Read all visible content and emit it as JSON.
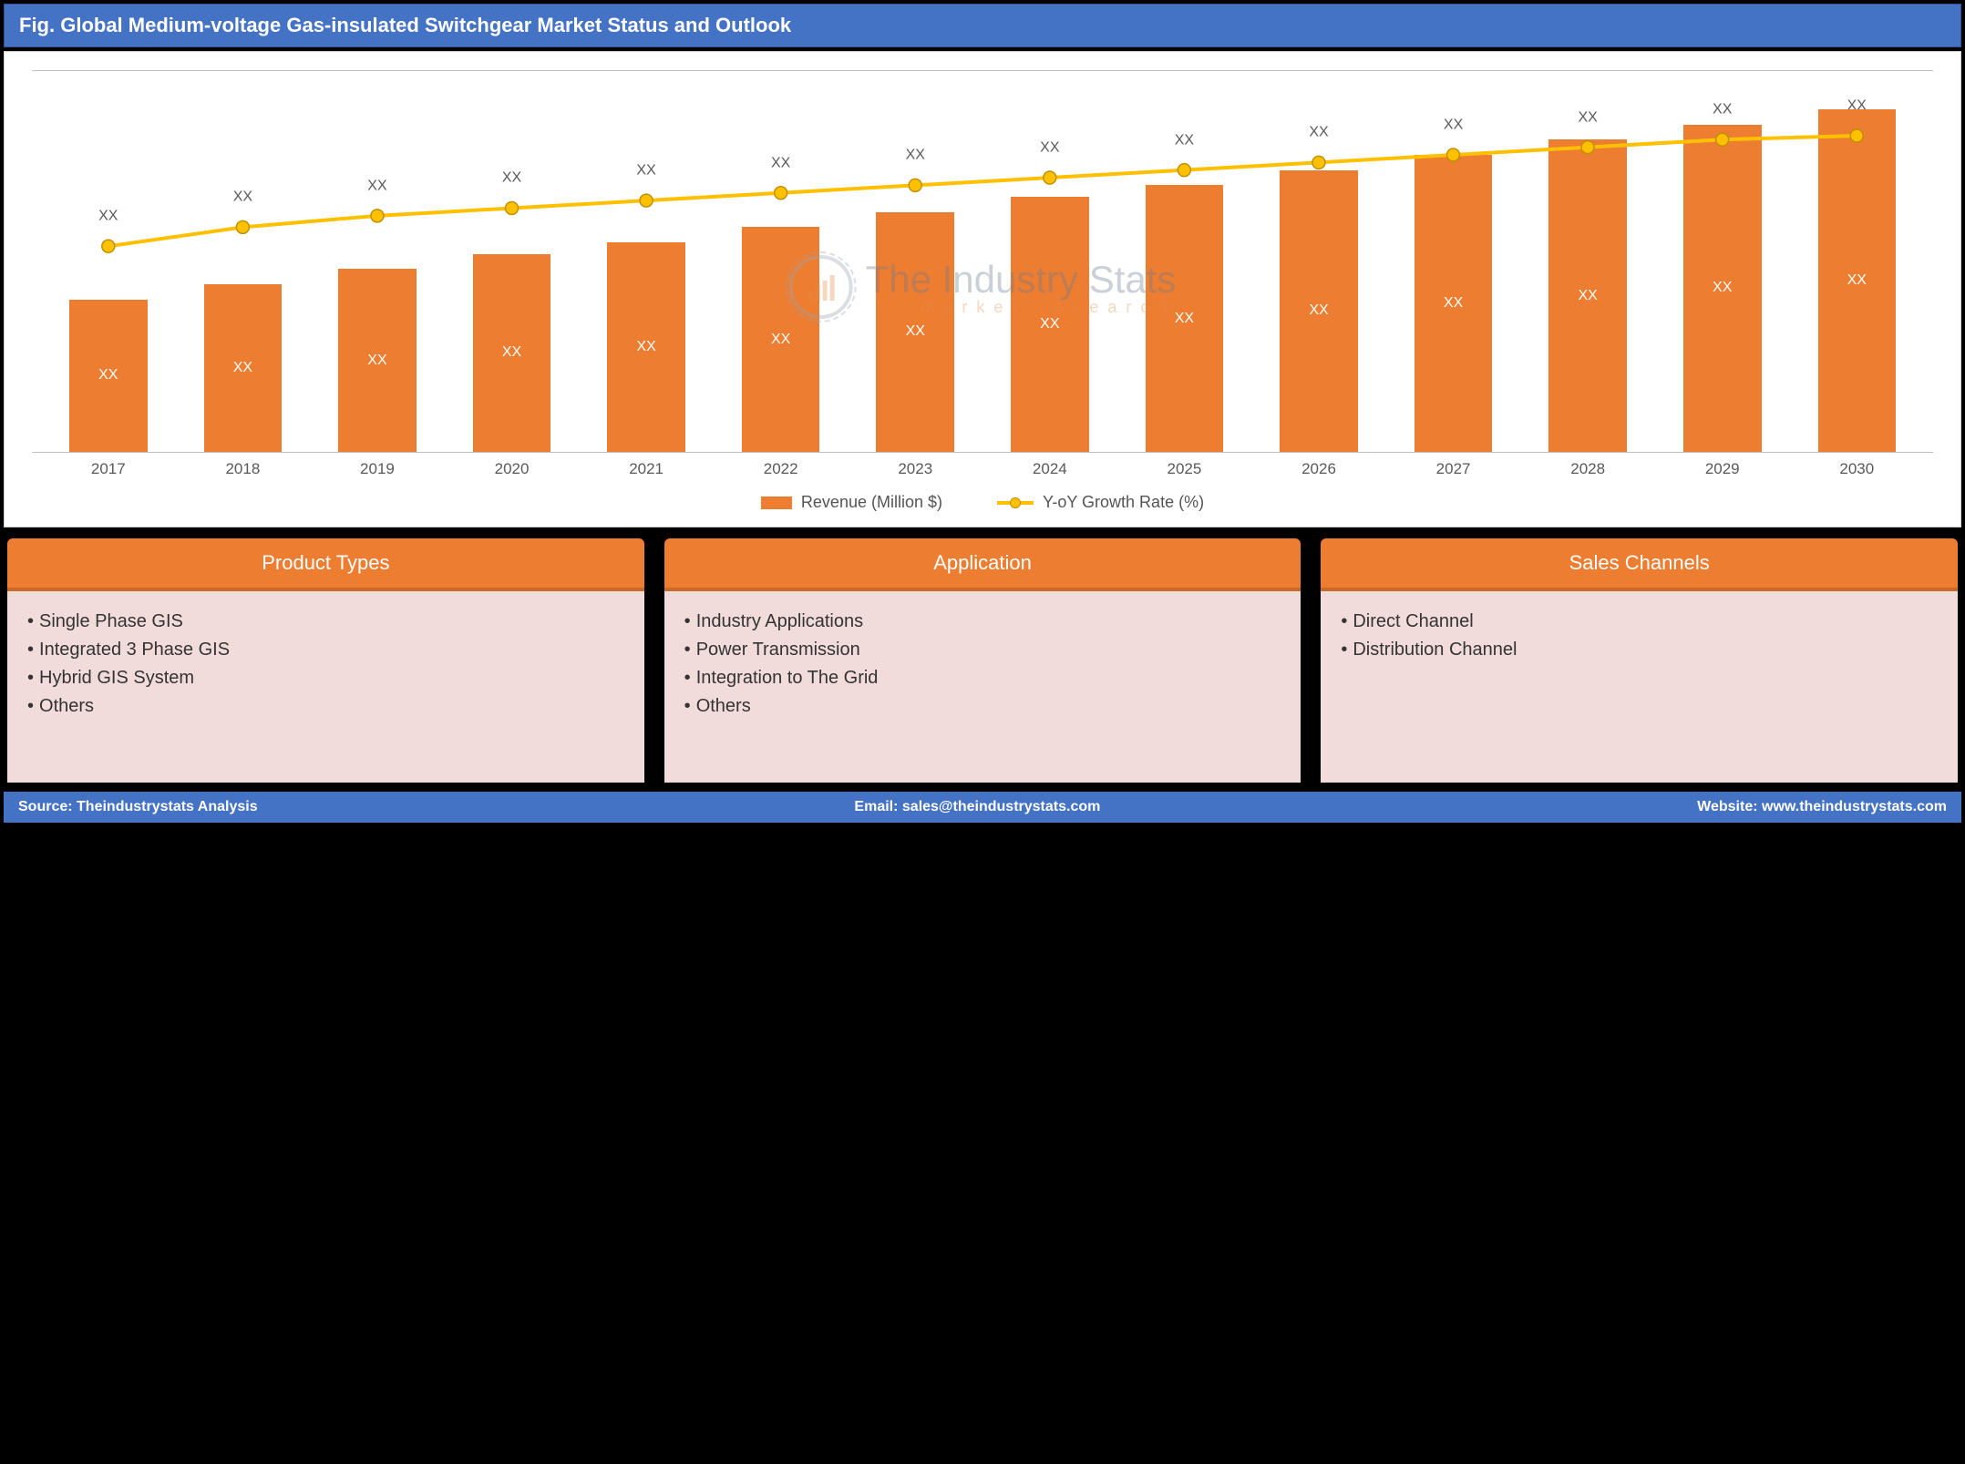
{
  "header": {
    "title": "Fig. Global Medium-voltage Gas-insulated Switchgear Market Status and Outlook"
  },
  "chart": {
    "type": "bar+line",
    "bar_color": "#ed7d31",
    "line_color": "#ffc000",
    "marker_color": "#ffc000",
    "marker_border": "#bf9000",
    "line_width": 4,
    "marker_radius": 7,
    "bar_width_ratio": 0.58,
    "background_color": "#ffffff",
    "grid_color": "#c0c0c0",
    "text_color": "#595959",
    "label_fontsize": 16,
    "axis_fontsize": 17,
    "ylim": [
      0,
      100
    ],
    "categories": [
      "2017",
      "2018",
      "2019",
      "2020",
      "2021",
      "2022",
      "2023",
      "2024",
      "2025",
      "2026",
      "2027",
      "2028",
      "2029",
      "2030"
    ],
    "bar_values": [
      40,
      44,
      48,
      52,
      55,
      59,
      63,
      67,
      70,
      74,
      78,
      82,
      86,
      90
    ],
    "bar_inner_labels": [
      "XX",
      "XX",
      "XX",
      "XX",
      "XX",
      "XX",
      "XX",
      "XX",
      "XX",
      "XX",
      "XX",
      "XX",
      "XX",
      "XX"
    ],
    "line_values": [
      54,
      59,
      62,
      64,
      66,
      68,
      70,
      72,
      74,
      76,
      78,
      80,
      82,
      83
    ],
    "line_top_labels": [
      "XX",
      "XX",
      "XX",
      "XX",
      "XX",
      "XX",
      "XX",
      "XX",
      "XX",
      "XX",
      "XX",
      "XX",
      "XX",
      "XX"
    ],
    "legend": {
      "bar_label": "Revenue (Million $)",
      "line_label": "Y-oY Growth Rate (%)"
    },
    "watermark": {
      "main": "The Industry Stats",
      "sub": "market research"
    }
  },
  "cards": [
    {
      "title": "Product Types",
      "header_bg": "#ed7d31",
      "items": [
        "Single Phase GIS",
        "Integrated 3 Phase GIS",
        "Hybrid GIS System",
        "Others"
      ]
    },
    {
      "title": "Application",
      "header_bg": "#ed7d31",
      "items": [
        "Industry Applications",
        "Power Transmission",
        "Integration to The Grid",
        "Others"
      ]
    },
    {
      "title": "Sales Channels",
      "header_bg": "#ed7d31",
      "items": [
        "Direct Channel",
        "Distribution Channel"
      ]
    }
  ],
  "footer": {
    "source_label": "Source:",
    "source_value": "Theindustrystats Analysis",
    "email_label": "Email:",
    "email_value": "sales@theindustrystats.com",
    "website_label": "Website:",
    "website_value": "www.theindustrystats.com"
  }
}
